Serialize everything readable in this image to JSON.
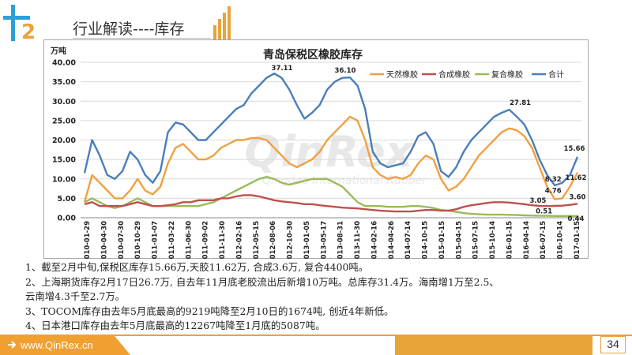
{
  "header": {
    "section_number": "2",
    "title": "行业解读----库存"
  },
  "chart_data": {
    "type": "line",
    "title": "青岛保税区橡胶库存",
    "ylabel": "万吨",
    "ylim": [
      0,
      40
    ],
    "yticks": [
      "0.00",
      "5.00",
      "10.00",
      "15.00",
      "20.00",
      "25.00",
      "30.00",
      "35.00",
      "40.00"
    ],
    "grid": true,
    "legend": "top-right",
    "x_tick_labels": [
      "2010-01-29",
      "2010-04-30",
      "2010-07-30",
      "2010-10-29",
      "2011-01-07",
      "2011-03-22",
      "2011-06-30",
      "2011-09-02",
      "2011-11-30",
      "2012-02-16",
      "2012-05-15",
      "2012-08-06",
      "2012-10-30",
      "2013-01-05",
      "2013-05-17",
      "2013-08-31",
      "2013-11-30",
      "2014-02-16",
      "2014-04-26",
      "2014-07-14",
      "2014-10-15",
      "2015-01-15",
      "2015-04-15",
      "2015-07-15",
      "2015-10-14",
      "2016-01-15",
      "2016-04-14",
      "2016-07-15",
      "2016-10-14",
      "2017-01-15"
    ],
    "series": [
      {
        "name": "天然橡胶",
        "color": "#f0a040"
      },
      {
        "name": "合成橡胶",
        "color": "#c0504d"
      },
      {
        "name": "复合橡胶",
        "color": "#9bbb59"
      },
      {
        "name": "合计",
        "color": "#4a7ebb"
      }
    ],
    "values": {
      "total": [
        11.5,
        20,
        16,
        11,
        10,
        12,
        17,
        15,
        11,
        9,
        12,
        22,
        24.5,
        24,
        22,
        20,
        20,
        22,
        24,
        26,
        28,
        29,
        32,
        34,
        36,
        37.11,
        36,
        33,
        29,
        25.5,
        27,
        29,
        33,
        35,
        36,
        36.1,
        34,
        28,
        17,
        14,
        13,
        13.5,
        14,
        17,
        21,
        22,
        19,
        12,
        10.5,
        13,
        17,
        20,
        22,
        24,
        26,
        27,
        27.81,
        26,
        24,
        20,
        15,
        11,
        8.32,
        9,
        11,
        15.66
      ],
      "natural": [
        4,
        11,
        9,
        7,
        5,
        5,
        7,
        10,
        7,
        6,
        8,
        14,
        18,
        19,
        17,
        15,
        15,
        16,
        18,
        19,
        20,
        20,
        20.5,
        20.5,
        20,
        18,
        16,
        14,
        13,
        14,
        15,
        17,
        20,
        22,
        24,
        26,
        25,
        20,
        13,
        11,
        10,
        10.5,
        10,
        11,
        14,
        16,
        15,
        10,
        7,
        8,
        10,
        13,
        16,
        18,
        20,
        22,
        23,
        22.5,
        21,
        18,
        13,
        8,
        4.76,
        5,
        8,
        11.62
      ],
      "synthetic": [
        3.5,
        4,
        3,
        3,
        3,
        3,
        3.5,
        4,
        3.5,
        3,
        3,
        3.2,
        3.5,
        4,
        4,
        4.5,
        4.5,
        4.5,
        5,
        5,
        5.5,
        5.8,
        5.8,
        5.5,
        5,
        4.5,
        4.2,
        4,
        3.8,
        3.5,
        3.5,
        3.2,
        3,
        2.8,
        2.6,
        2.5,
        2.4,
        2.2,
        2,
        1.8,
        1.7,
        1.6,
        1.6,
        1.6,
        1.8,
        2,
        2,
        1.8,
        1.8,
        2.2,
        2.8,
        3.2,
        3.5,
        3.8,
        4,
        4,
        3.9,
        3.7,
        3.5,
        3.2,
        3.05,
        3,
        3.05,
        3.1,
        3.3,
        3.6
      ],
      "composite": [
        4,
        5,
        4,
        3,
        2.5,
        3,
        4,
        5,
        4,
        3,
        3,
        3,
        3,
        3,
        3,
        3,
        3.5,
        4,
        5,
        6,
        7,
        8,
        9,
        10,
        10.5,
        10,
        9,
        8.5,
        9,
        9.5,
        10,
        10,
        10,
        9,
        8,
        6,
        4,
        3,
        3,
        3,
        2.8,
        2.8,
        2.8,
        3,
        3,
        2.8,
        2.5,
        2,
        1.8,
        1.5,
        1.2,
        1,
        0.9,
        0.8,
        0.8,
        0.8,
        0.75,
        0.7,
        0.6,
        0.55,
        0.5,
        0.51,
        0.45,
        0.44,
        0.44,
        0.44
      ]
    },
    "annotations": [
      {
        "text": "37.11",
        "series": "total",
        "index": 25
      },
      {
        "text": "36.10",
        "series": "total",
        "index": 35
      },
      {
        "text": "27.81",
        "series": "total",
        "index": 56
      },
      {
        "text": "15.66",
        "series": "total",
        "index": 65
      },
      {
        "text": "8.32",
        "series": "total",
        "index": 62
      },
      {
        "text": "11.62",
        "series": "natural",
        "index": 65
      },
      {
        "text": "4.76",
        "series": "natural",
        "index": 62
      },
      {
        "text": "3.60",
        "series": "synthetic",
        "index": 65
      },
      {
        "text": "3.05",
        "series": "synthetic",
        "index": 60
      },
      {
        "text": "0.51",
        "series": "composite",
        "index": 61
      },
      {
        "text": "0.44",
        "series": "composite",
        "index": 65
      }
    ],
    "watermark": {
      "brand": "QinRex",
      "subtitle": "Qingdao International Rubber"
    }
  },
  "notes": [
    "1、截至2月中旬,保税区库存15.66万,天胶11.62万, 合成3.6万, 复合4400吨。",
    "2、上海期货库存2月17日26.7万, 自去年11月底老胶流出后新增10万吨。总库存31.4万。海南增1万至2.5、",
    "云南增4.3千至2.7万。",
    "3、TOCOM库存由去年5月底最高的9219吨降至2月10日的1674吨, 创近4年新低。",
    "4、日本港口库存由去年5月底最高的12267吨降至1月底的5087吨。"
  ],
  "footer": {
    "url": "www.QinRex.cn",
    "page_number": "34"
  }
}
